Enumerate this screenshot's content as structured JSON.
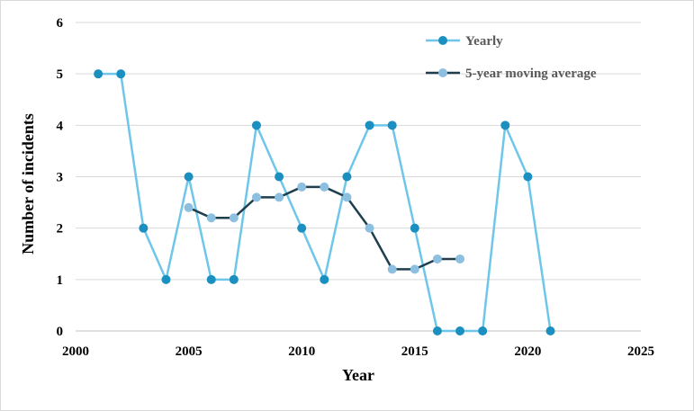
{
  "chart_data": {
    "type": "line",
    "xlabel": "Year",
    "ylabel": "Number of incidents",
    "xlim": [
      2000,
      2025
    ],
    "ylim": [
      0,
      6
    ],
    "x_ticks": [
      2000,
      2005,
      2010,
      2015,
      2020,
      2025
    ],
    "y_ticks": [
      0,
      1,
      2,
      3,
      4,
      5,
      6
    ],
    "grid": "horizontal",
    "legend_position": "top-right",
    "series": [
      {
        "name": "Yearly",
        "line_color": "#6ec6ea",
        "marker_color": "#1b8fbf",
        "x": [
          2001,
          2002,
          2003,
          2004,
          2005,
          2006,
          2007,
          2008,
          2009,
          2010,
          2011,
          2012,
          2013,
          2014,
          2015,
          2016,
          2017,
          2018,
          2019,
          2020,
          2021
        ],
        "y": [
          5,
          5,
          2,
          1,
          3,
          1,
          1,
          4,
          3,
          2,
          1,
          3,
          4,
          4,
          2,
          0,
          0,
          0,
          4,
          3,
          0
        ]
      },
      {
        "name": "5-year moving average",
        "line_color": "#1f3f4f",
        "marker_color": "#8dbfe0",
        "x": [
          2005,
          2006,
          2007,
          2008,
          2009,
          2010,
          2011,
          2012,
          2013,
          2014,
          2015,
          2016,
          2017
        ],
        "y": [
          2.4,
          2.2,
          2.2,
          2.6,
          2.6,
          2.8,
          2.8,
          2.6,
          2.0,
          1.2,
          1.2,
          1.4,
          1.4
        ]
      }
    ]
  }
}
